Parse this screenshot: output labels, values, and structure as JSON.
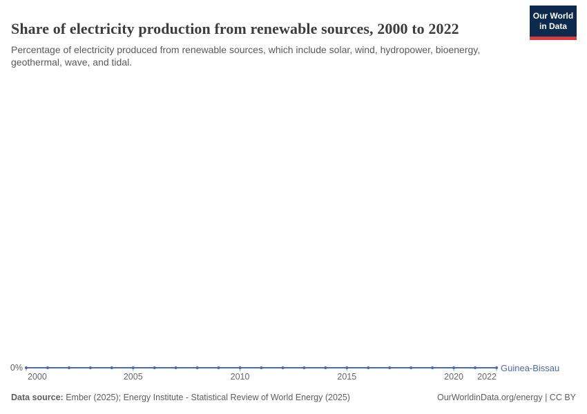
{
  "header": {
    "title": "Share of electricity production from renewable sources, 2000 to 2022",
    "subtitle": "Percentage of electricity produced from renewable sources, which include solar, wind, hydropower, bioenergy, geothermal, wave, and tidal.",
    "logo": {
      "line1": "Our World",
      "line2": "in Data",
      "bg_color": "#0b2a4e",
      "bar_color": "#d43b42"
    }
  },
  "chart_data": {
    "type": "line",
    "title": "Share of electricity production from renewable sources, 2000 to 2022",
    "x": [
      2000,
      2001,
      2002,
      2003,
      2004,
      2005,
      2006,
      2007,
      2008,
      2009,
      2010,
      2011,
      2012,
      2013,
      2014,
      2015,
      2016,
      2017,
      2018,
      2019,
      2020,
      2021,
      2022
    ],
    "series": [
      {
        "name": "Guinea-Bissau",
        "color": "#4d6bab",
        "values": [
          0,
          0,
          0,
          0,
          0,
          0,
          0,
          0,
          0,
          0,
          0,
          0,
          0,
          0,
          0,
          0,
          0,
          0,
          0,
          0,
          0,
          0,
          0
        ]
      }
    ],
    "x_ticks": [
      2000,
      2005,
      2010,
      2015,
      2020,
      2022
    ],
    "y_tick_labels": [
      "0%"
    ],
    "xlabel": "",
    "ylabel": "",
    "grid": false,
    "legend": "end-of-line-label",
    "unit": "%"
  },
  "footer": {
    "source_label": "Data source:",
    "source_text": " Ember (2025); Energy Institute - Statistical Review of World Energy (2025)",
    "rights": "OurWorldinData.org/energy | CC BY"
  }
}
